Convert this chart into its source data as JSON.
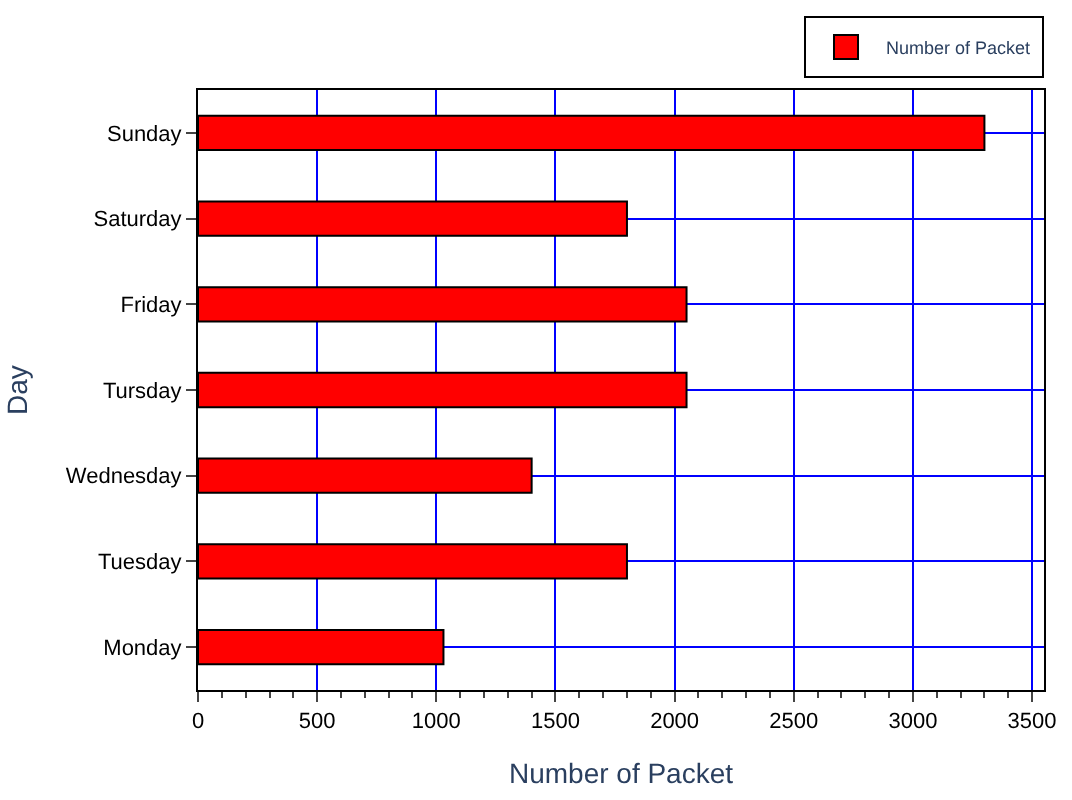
{
  "chart_data": {
    "type": "bar",
    "orientation": "horizontal",
    "xlabel": "Number of Packet",
    "ylabel": "Day",
    "categories": [
      "Sunday",
      "Saturday",
      "Friday",
      "Tursday",
      "Wednesday",
      "Tuesday",
      "Monday"
    ],
    "series": [
      {
        "name": "Number of Packet",
        "color": "#ff0000",
        "values": [
          3300,
          1800,
          2050,
          2050,
          1400,
          1800,
          1030
        ]
      }
    ],
    "xlim": [
      0,
      3550
    ],
    "xticks": [
      0,
      500,
      1000,
      1500,
      2000,
      2500,
      3000,
      3500
    ],
    "grid": true,
    "legend": "top right"
  }
}
